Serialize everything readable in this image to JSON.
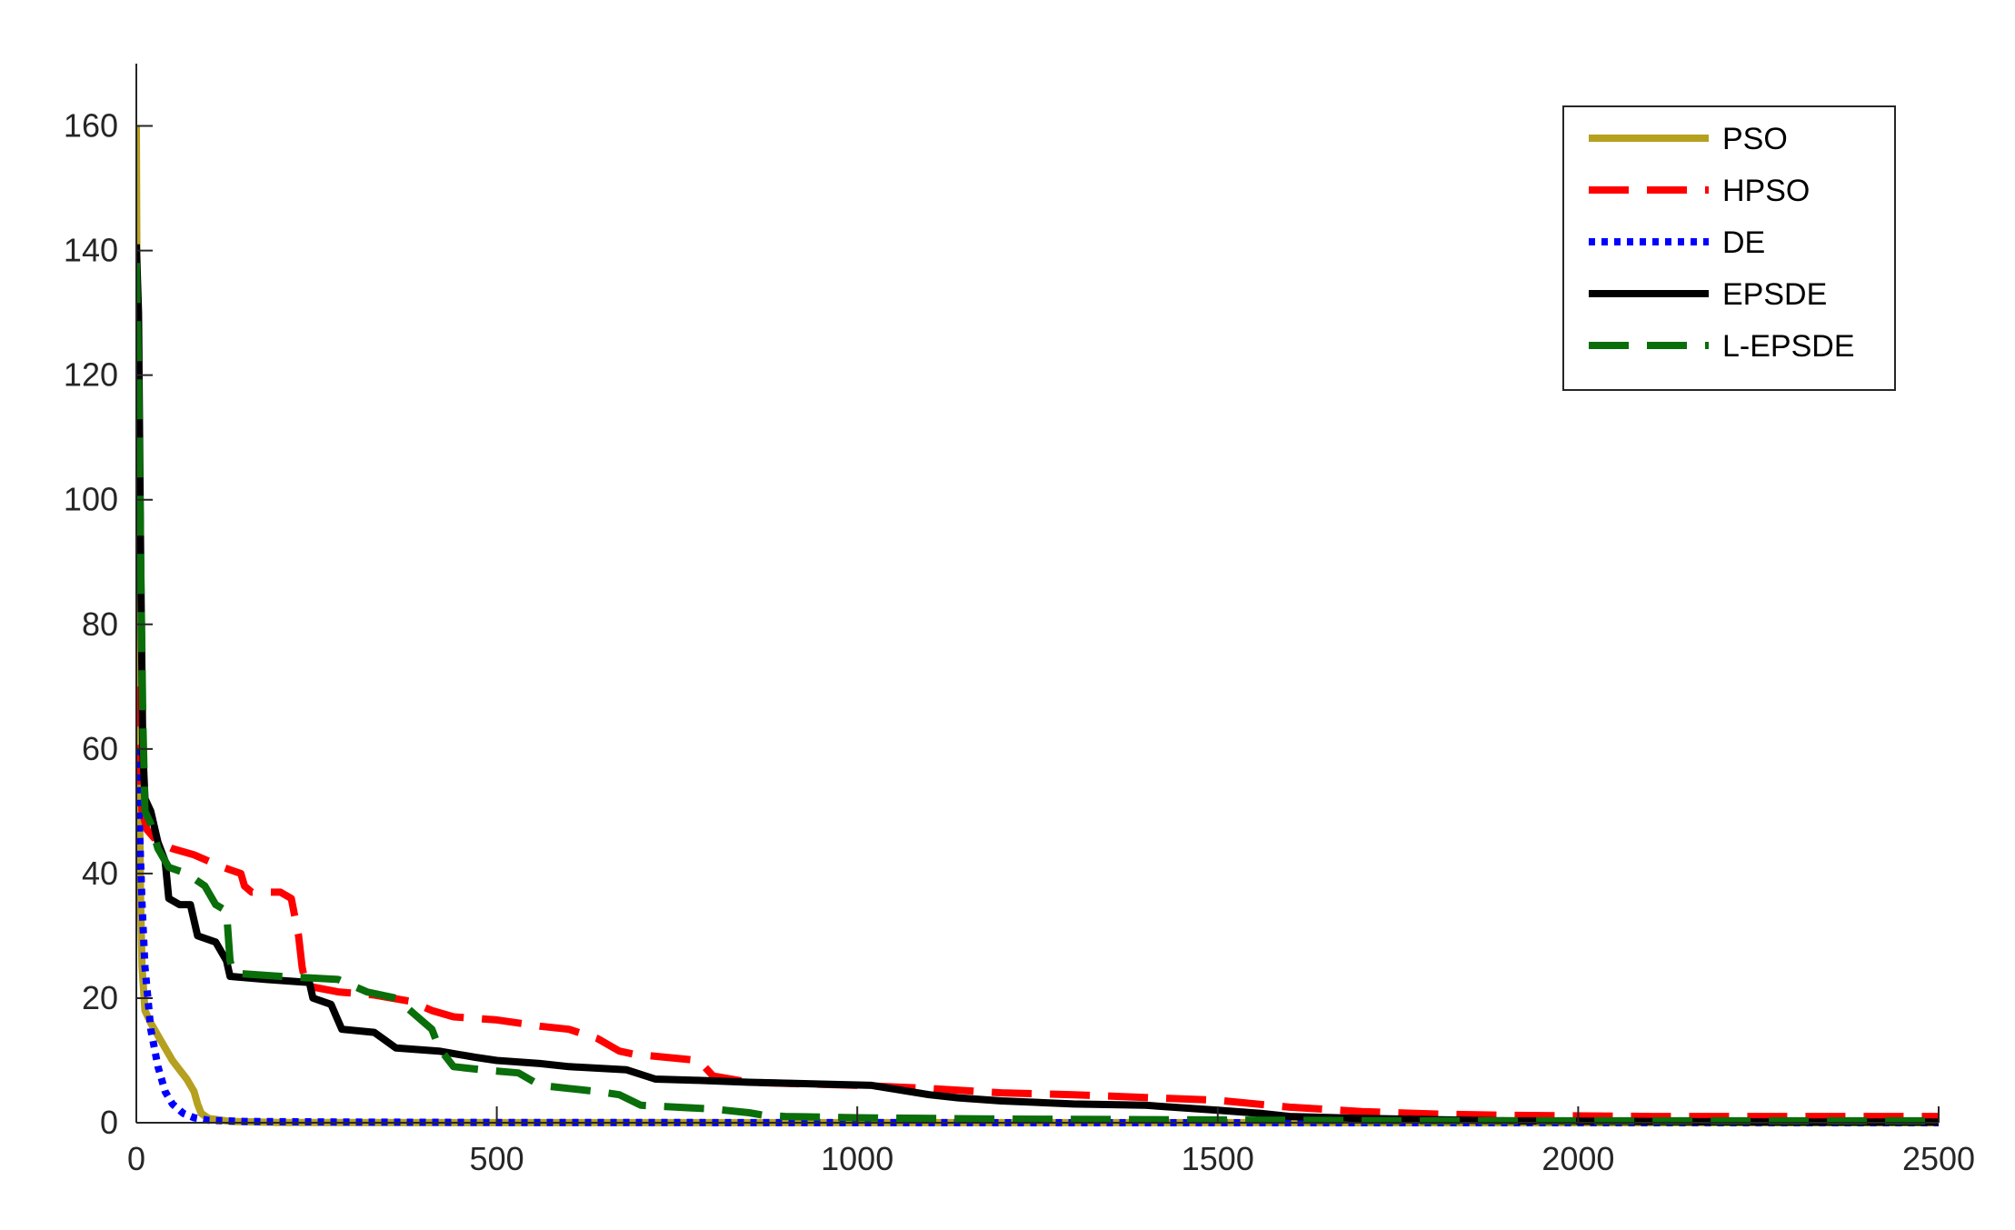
{
  "chart_data": {
    "type": "line",
    "title": "",
    "xlabel": "",
    "ylabel": "",
    "xlim": [
      0,
      2500
    ],
    "ylim": [
      0,
      170
    ],
    "xticks": [
      0,
      500,
      1000,
      1500,
      2000,
      2500
    ],
    "yticks": [
      0,
      20,
      40,
      60,
      80,
      100,
      120,
      140,
      160
    ],
    "xtick_labels": [
      "0",
      "500",
      "1000",
      "1500",
      "2000",
      "2500"
    ],
    "ytick_labels": [
      "0",
      "20",
      "40",
      "60",
      "80",
      "100",
      "120",
      "140",
      "160"
    ],
    "grid": false,
    "legend_position": "top-right",
    "series": [
      {
        "name": "PSO",
        "color": "#b5a020",
        "dash": "solid",
        "points": [
          [
            0,
            160
          ],
          [
            2,
            100
          ],
          [
            4,
            55
          ],
          [
            6,
            35
          ],
          [
            8,
            25
          ],
          [
            12,
            18
          ],
          [
            20,
            16
          ],
          [
            30,
            14
          ],
          [
            40,
            12
          ],
          [
            50,
            10
          ],
          [
            60,
            8.5
          ],
          [
            70,
            7
          ],
          [
            80,
            5
          ],
          [
            85,
            3
          ],
          [
            90,
            1.5
          ],
          [
            100,
            0.7
          ],
          [
            130,
            0.2
          ],
          [
            200,
            0.05
          ],
          [
            500,
            0.02
          ],
          [
            1000,
            0.01
          ],
          [
            1500,
            0.01
          ],
          [
            2000,
            0
          ],
          [
            2500,
            0
          ]
        ]
      },
      {
        "name": "HPSO",
        "color": "#ff0000",
        "dash": "dashed",
        "points": [
          [
            0,
            70
          ],
          [
            4,
            58
          ],
          [
            8,
            50
          ],
          [
            15,
            47
          ],
          [
            30,
            45
          ],
          [
            50,
            44
          ],
          [
            80,
            43
          ],
          [
            120,
            41
          ],
          [
            145,
            40
          ],
          [
            150,
            38
          ],
          [
            160,
            37
          ],
          [
            200,
            37
          ],
          [
            215,
            36
          ],
          [
            225,
            30
          ],
          [
            230,
            25
          ],
          [
            235,
            22
          ],
          [
            280,
            21
          ],
          [
            330,
            20.5
          ],
          [
            380,
            19.5
          ],
          [
            410,
            18
          ],
          [
            440,
            17
          ],
          [
            500,
            16.5
          ],
          [
            560,
            15.5
          ],
          [
            600,
            15
          ],
          [
            640,
            13.5
          ],
          [
            670,
            11.5
          ],
          [
            690,
            11
          ],
          [
            780,
            10
          ],
          [
            800,
            7.5
          ],
          [
            850,
            6.5
          ],
          [
            1000,
            6
          ],
          [
            1100,
            5.5
          ],
          [
            1200,
            4.8
          ],
          [
            1300,
            4.5
          ],
          [
            1500,
            3.6
          ],
          [
            1600,
            2.5
          ],
          [
            1700,
            1.8
          ],
          [
            1800,
            1.4
          ],
          [
            1900,
            1.2
          ],
          [
            2100,
            1
          ],
          [
            2300,
            1
          ],
          [
            2500,
            1
          ]
        ]
      },
      {
        "name": "DE",
        "color": "#0000ff",
        "dash": "dotted",
        "points": [
          [
            0,
            60
          ],
          [
            2,
            55
          ],
          [
            5,
            45
          ],
          [
            8,
            35
          ],
          [
            12,
            25
          ],
          [
            20,
            15
          ],
          [
            30,
            9
          ],
          [
            40,
            5
          ],
          [
            50,
            3
          ],
          [
            65,
            1.5
          ],
          [
            80,
            0.8
          ],
          [
            100,
            0.4
          ],
          [
            150,
            0.2
          ],
          [
            300,
            0.1
          ],
          [
            500,
            0.05
          ],
          [
            1000,
            0.02
          ],
          [
            1500,
            0
          ],
          [
            2000,
            0
          ],
          [
            2500,
            0
          ]
        ]
      },
      {
        "name": "EPSDE",
        "color": "#000000",
        "dash": "solid",
        "points": [
          [
            0,
            141
          ],
          [
            3,
            130
          ],
          [
            6,
            90
          ],
          [
            9,
            60
          ],
          [
            12,
            52
          ],
          [
            20,
            50
          ],
          [
            30,
            45
          ],
          [
            40,
            42
          ],
          [
            45,
            36
          ],
          [
            60,
            35
          ],
          [
            75,
            35
          ],
          [
            85,
            30
          ],
          [
            110,
            29
          ],
          [
            125,
            26
          ],
          [
            130,
            23.5
          ],
          [
            180,
            23
          ],
          [
            240,
            22.5
          ],
          [
            245,
            20
          ],
          [
            270,
            19
          ],
          [
            285,
            15
          ],
          [
            330,
            14.5
          ],
          [
            360,
            12
          ],
          [
            420,
            11.5
          ],
          [
            470,
            10.5
          ],
          [
            500,
            10
          ],
          [
            560,
            9.5
          ],
          [
            600,
            9
          ],
          [
            680,
            8.5
          ],
          [
            720,
            7
          ],
          [
            780,
            6.8
          ],
          [
            850,
            6.5
          ],
          [
            950,
            6.2
          ],
          [
            1020,
            6
          ],
          [
            1100,
            4.5
          ],
          [
            1140,
            4
          ],
          [
            1200,
            3.5
          ],
          [
            1300,
            3
          ],
          [
            1400,
            2.8
          ],
          [
            1500,
            2
          ],
          [
            1560,
            1.5
          ],
          [
            1600,
            1
          ],
          [
            1700,
            0.7
          ],
          [
            1800,
            0.5
          ],
          [
            1900,
            0.3
          ],
          [
            2100,
            0.2
          ],
          [
            2300,
            0.1
          ],
          [
            2500,
            0.1
          ]
        ]
      },
      {
        "name": "L-EPSDE",
        "color": "#0a6e0a",
        "dash": "dashed",
        "points": [
          [
            0,
            138
          ],
          [
            3,
            120
          ],
          [
            6,
            90
          ],
          [
            9,
            65
          ],
          [
            12,
            50
          ],
          [
            20,
            48
          ],
          [
            30,
            44
          ],
          [
            45,
            41
          ],
          [
            70,
            40
          ],
          [
            95,
            38
          ],
          [
            110,
            35
          ],
          [
            125,
            34
          ],
          [
            130,
            26
          ],
          [
            135,
            24
          ],
          [
            200,
            23.5
          ],
          [
            280,
            23
          ],
          [
            320,
            21
          ],
          [
            360,
            20
          ],
          [
            390,
            17
          ],
          [
            410,
            15
          ],
          [
            420,
            12
          ],
          [
            440,
            9
          ],
          [
            480,
            8.5
          ],
          [
            530,
            8
          ],
          [
            560,
            6
          ],
          [
            600,
            5.5
          ],
          [
            640,
            5
          ],
          [
            670,
            4.5
          ],
          [
            700,
            2.8
          ],
          [
            750,
            2.5
          ],
          [
            800,
            2.2
          ],
          [
            850,
            1.6
          ],
          [
            870,
            1.2
          ],
          [
            900,
            1
          ],
          [
            1000,
            0.8
          ],
          [
            1200,
            0.6
          ],
          [
            1400,
            0.5
          ],
          [
            1600,
            0.4
          ],
          [
            1800,
            0.3
          ],
          [
            2000,
            0.3
          ],
          [
            2200,
            0.3
          ],
          [
            2500,
            0.3
          ]
        ]
      }
    ]
  }
}
